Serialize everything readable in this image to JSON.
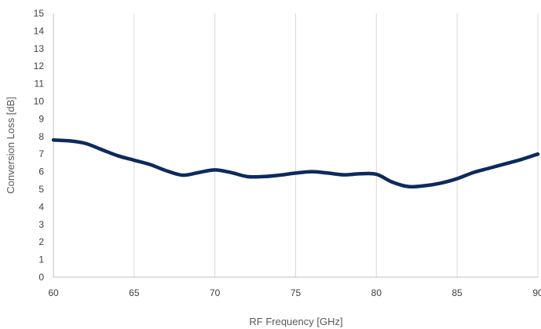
{
  "chart_data": {
    "type": "line",
    "title": "",
    "xlabel": "RF Frequency [GHz]",
    "ylabel": "Conversion Loss [dB]",
    "xlim": [
      60,
      90
    ],
    "ylim": [
      0,
      15
    ],
    "xticks": [
      60,
      65,
      70,
      75,
      80,
      85,
      90
    ],
    "yticks": [
      0,
      1,
      2,
      3,
      4,
      5,
      6,
      7,
      8,
      9,
      10,
      11,
      12,
      13,
      14,
      15
    ],
    "grid": "vertical",
    "legend": "none",
    "series": [
      {
        "color": "#0d2a5c",
        "x": [
          60,
          61,
          62,
          63,
          64,
          65,
          66,
          67,
          68,
          69,
          70,
          71,
          72,
          73,
          74,
          75,
          76,
          77,
          78,
          79,
          80,
          81,
          82,
          83,
          84,
          85,
          86,
          87,
          88,
          89,
          90
        ],
        "y": [
          7.8,
          7.75,
          7.6,
          7.25,
          6.9,
          6.65,
          6.4,
          6.05,
          5.8,
          5.95,
          6.1,
          5.95,
          5.72,
          5.72,
          5.8,
          5.92,
          6.0,
          5.92,
          5.82,
          5.88,
          5.85,
          5.4,
          5.15,
          5.2,
          5.35,
          5.6,
          5.95,
          6.2,
          6.45,
          6.7,
          7.0
        ]
      }
    ]
  }
}
